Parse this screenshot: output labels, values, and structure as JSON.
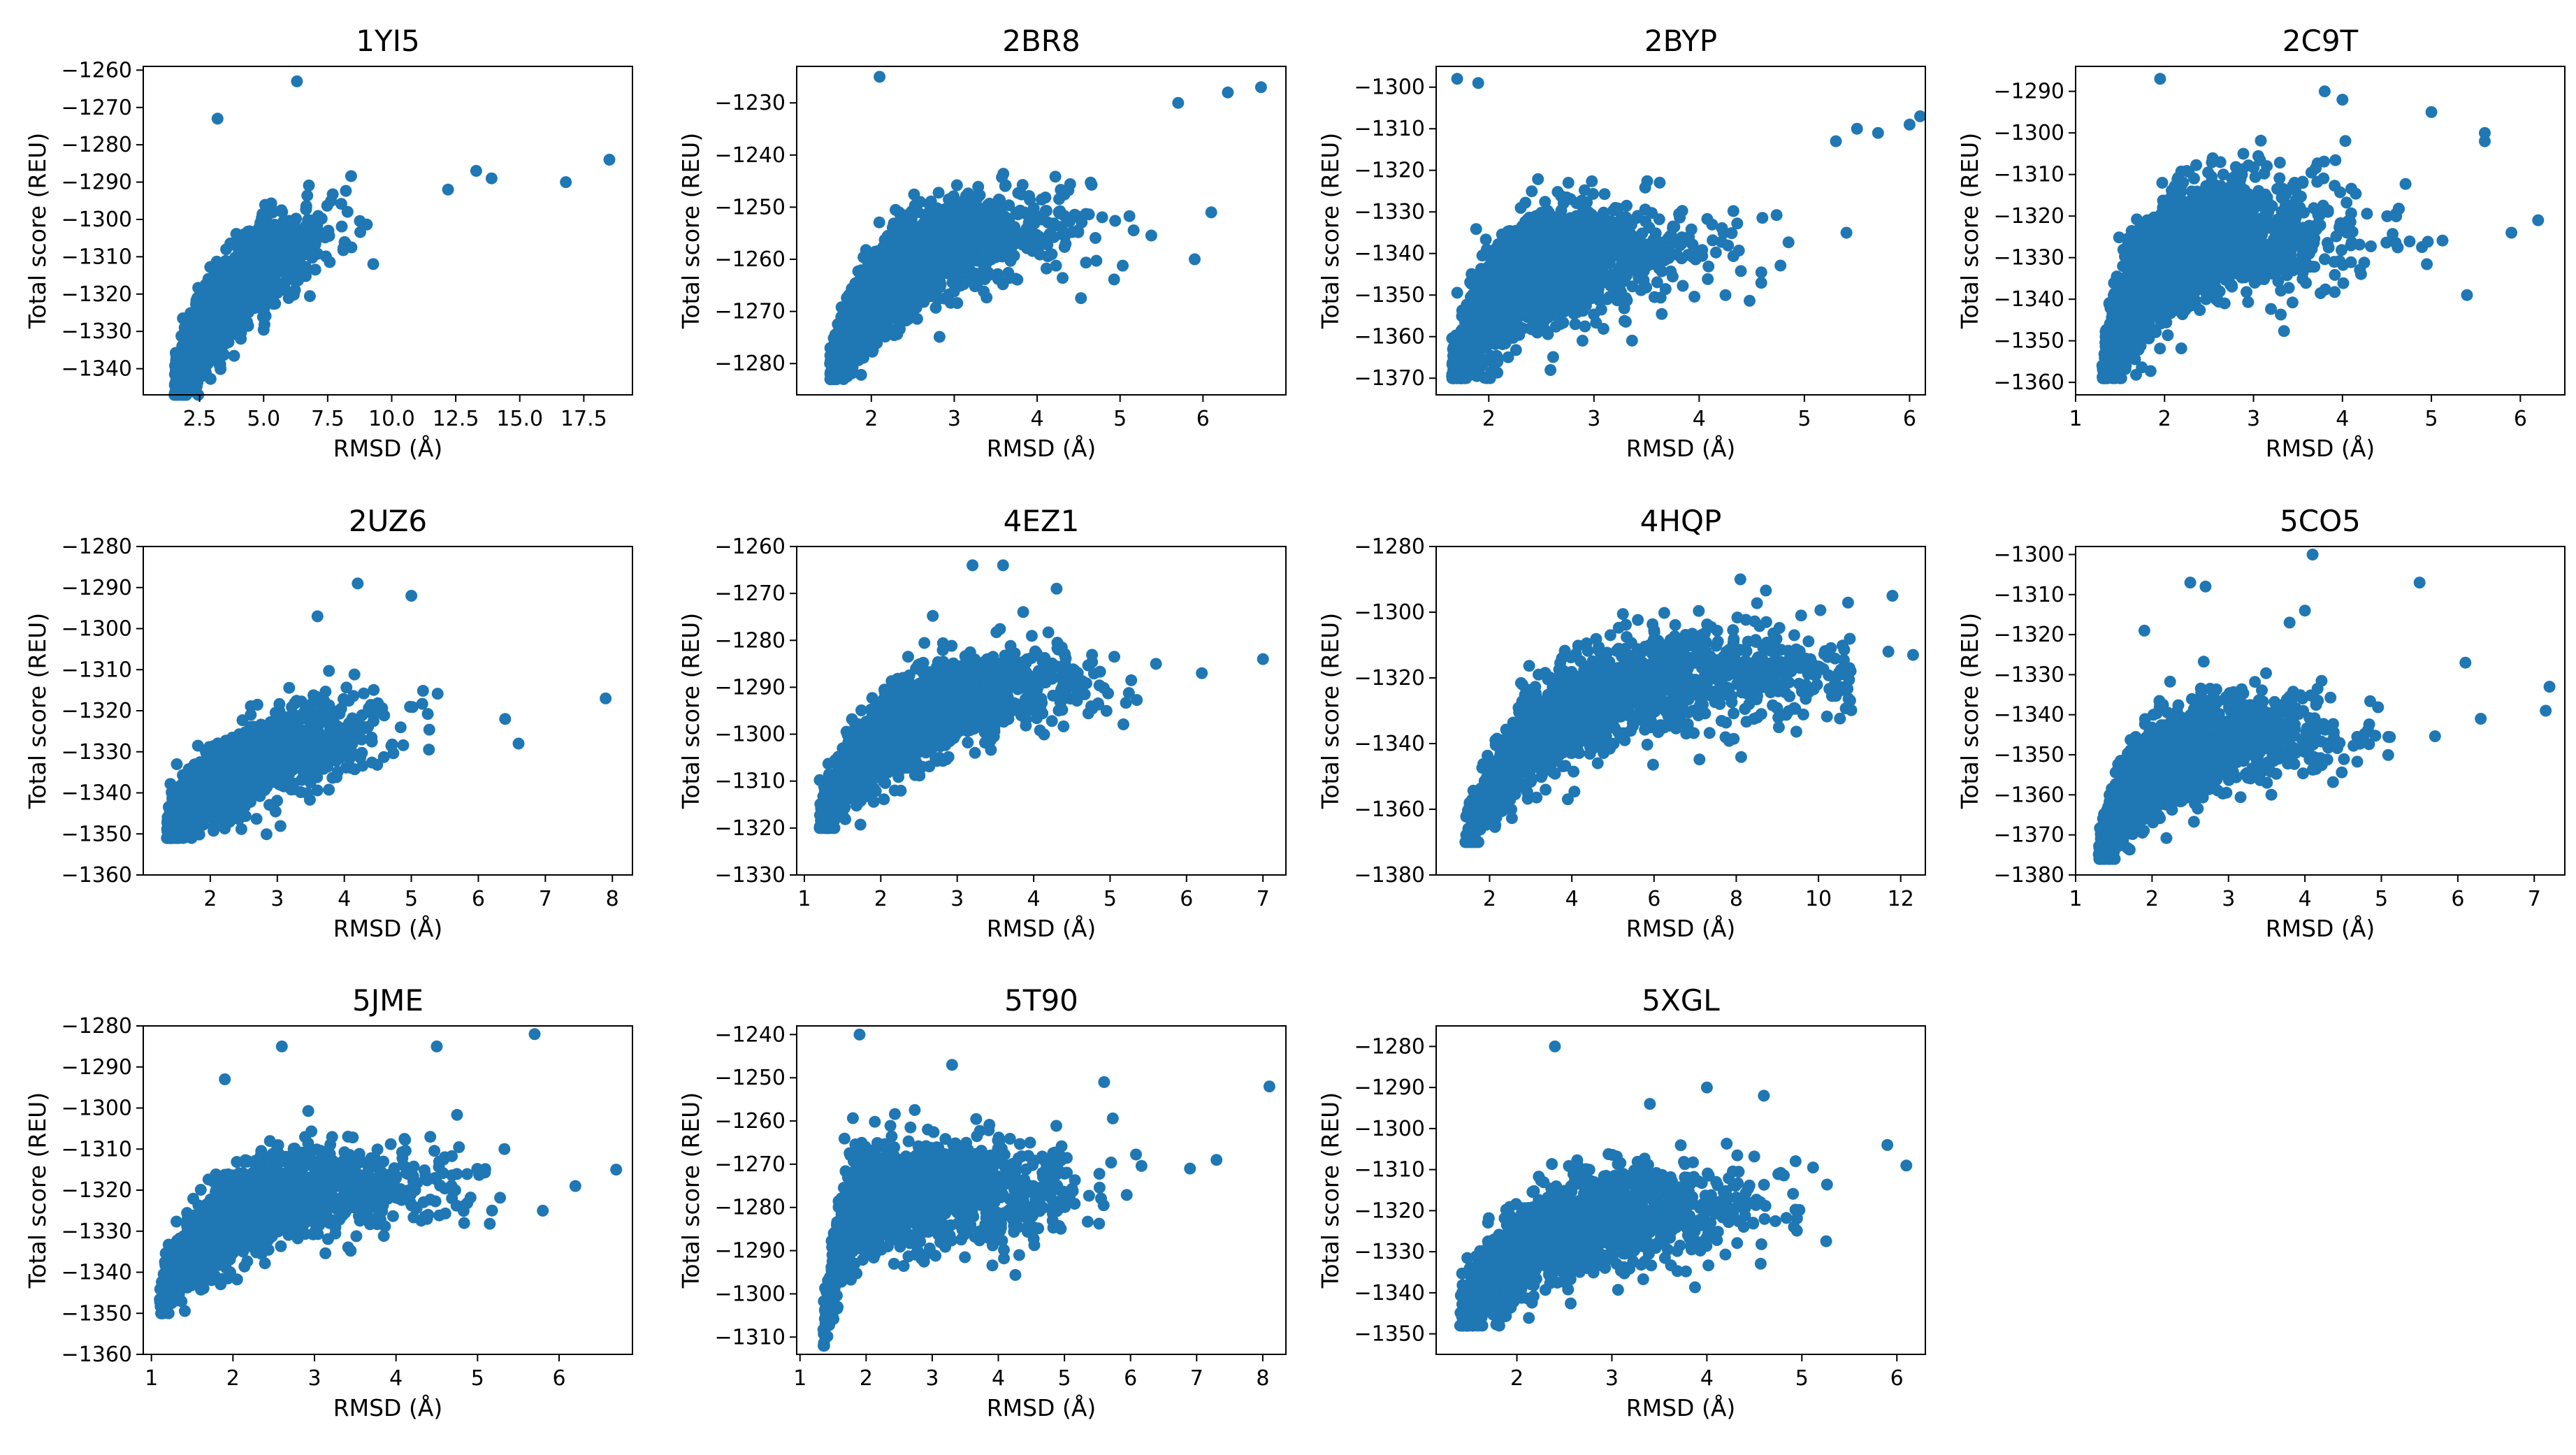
{
  "colors": {
    "marker": "#1f77b4",
    "axis": "#000000",
    "background": "#ffffff"
  },
  "chart_data": [
    {
      "id": "1YI5",
      "type": "scatter",
      "title": "1YI5",
      "xlabel": "RMSD (Å)",
      "ylabel": "Total score (REU)",
      "xlim": [
        0.3,
        19.4
      ],
      "ylim": [
        -1347,
        -1259
      ],
      "xticks": [
        2.5,
        5.0,
        7.5,
        10.0,
        12.5,
        15.0,
        17.5
      ],
      "xtick_labels": [
        "2.5",
        "5.0",
        "7.5",
        "10.0",
        "12.5",
        "15.0",
        "17.5"
      ],
      "yticks": [
        -1340,
        -1330,
        -1320,
        -1310,
        -1300,
        -1290,
        -1280,
        -1270,
        -1260
      ],
      "ytick_labels": [
        "−1340",
        "−1330",
        "−1320",
        "−1310",
        "−1300",
        "−1290",
        "−1280",
        "−1270",
        "−1260"
      ],
      "n_points": 1400,
      "x_start": 1.5,
      "x_spread": 2.5,
      "x_max": 11.5,
      "bottom_y": -1345,
      "plateau_y": -1296,
      "rise_width": 3.2,
      "y_noise": 6.5,
      "outliers": [
        [
          12.2,
          -1292
        ],
        [
          13.3,
          -1287
        ],
        [
          13.9,
          -1289
        ],
        [
          16.8,
          -1290
        ],
        [
          18.5,
          -1284
        ],
        [
          6.3,
          -1263
        ],
        [
          3.2,
          -1273
        ]
      ]
    },
    {
      "id": "2BR8",
      "type": "scatter",
      "title": "2BR8",
      "xlabel": "RMSD (Å)",
      "ylabel": "Total score (REU)",
      "xlim": [
        1.1,
        7.0
      ],
      "ylim": [
        -1286,
        -1223
      ],
      "xticks": [
        2,
        3,
        4,
        5,
        6
      ],
      "xtick_labels": [
        "2",
        "3",
        "4",
        "5",
        "6"
      ],
      "yticks": [
        -1280,
        -1270,
        -1260,
        -1250,
        -1240,
        -1230
      ],
      "ytick_labels": [
        "−1280",
        "−1270",
        "−1260",
        "−1250",
        "−1240",
        "−1230"
      ],
      "n_points": 1700,
      "x_start": 1.5,
      "x_spread": 1.2,
      "x_max": 5.6,
      "bottom_y": -1281,
      "plateau_y": -1253,
      "rise_width": 0.8,
      "y_noise": 4.5,
      "outliers": [
        [
          2.1,
          -1225
        ],
        [
          5.7,
          -1230
        ],
        [
          6.3,
          -1228
        ],
        [
          6.7,
          -1227
        ],
        [
          6.1,
          -1251
        ],
        [
          5.9,
          -1260
        ]
      ]
    },
    {
      "id": "2BYP",
      "type": "scatter",
      "title": "2BYP",
      "xlabel": "RMSD (Å)",
      "ylabel": "Total score (REU)",
      "xlim": [
        1.5,
        6.15
      ],
      "ylim": [
        -1374,
        -1295
      ],
      "xticks": [
        2,
        3,
        4,
        5,
        6
      ],
      "xtick_labels": [
        "2",
        "3",
        "4",
        "5",
        "6"
      ],
      "yticks": [
        -1370,
        -1360,
        -1350,
        -1340,
        -1330,
        -1320,
        -1310,
        -1300
      ],
      "ytick_labels": [
        "−1370",
        "−1360",
        "−1350",
        "−1340",
        "−1330",
        "−1320",
        "−1310",
        "−1300"
      ],
      "n_points": 1700,
      "x_start": 1.65,
      "x_spread": 1.0,
      "x_max": 5.2,
      "bottom_y": -1368,
      "plateau_y": -1338,
      "rise_width": 0.5,
      "y_noise": 7,
      "outliers": [
        [
          1.7,
          -1298
        ],
        [
          1.9,
          -1299
        ],
        [
          5.5,
          -1310
        ],
        [
          5.7,
          -1311
        ],
        [
          6.0,
          -1309
        ],
        [
          6.1,
          -1307
        ],
        [
          5.3,
          -1313
        ],
        [
          5.4,
          -1335
        ]
      ]
    },
    {
      "id": "2C9T",
      "type": "scatter",
      "title": "2C9T",
      "xlabel": "RMSD (Å)",
      "ylabel": "Total score (REU)",
      "xlim": [
        1.0,
        6.5
      ],
      "ylim": [
        -1363,
        -1284
      ],
      "xticks": [
        1,
        2,
        3,
        4,
        5,
        6
      ],
      "xtick_labels": [
        "1",
        "2",
        "3",
        "4",
        "5",
        "6"
      ],
      "yticks": [
        -1360,
        -1350,
        -1340,
        -1330,
        -1320,
        -1310,
        -1300,
        -1290
      ],
      "ytick_labels": [
        "−1360",
        "−1350",
        "−1340",
        "−1330",
        "−1320",
        "−1310",
        "−1300",
        "−1290"
      ],
      "n_points": 1700,
      "x_start": 1.3,
      "x_spread": 1.2,
      "x_max": 5.2,
      "bottom_y": -1357,
      "plateau_y": -1323,
      "rise_width": 0.45,
      "y_noise": 7.5,
      "outliers": [
        [
          1.95,
          -1287
        ],
        [
          3.8,
          -1290
        ],
        [
          4.0,
          -1292
        ],
        [
          5.6,
          -1300
        ],
        [
          5.6,
          -1302
        ],
        [
          5.0,
          -1295
        ],
        [
          6.2,
          -1321
        ],
        [
          5.9,
          -1324
        ],
        [
          5.4,
          -1339
        ]
      ]
    },
    {
      "id": "2UZ6",
      "type": "scatter",
      "title": "2UZ6",
      "xlabel": "RMSD (Å)",
      "ylabel": "Total score (REU)",
      "xlim": [
        1.0,
        8.3
      ],
      "ylim": [
        -1360,
        -1280
      ],
      "xticks": [
        2,
        3,
        4,
        5,
        6,
        7,
        8
      ],
      "xtick_labels": [
        "2",
        "3",
        "4",
        "5",
        "6",
        "7",
        "8"
      ],
      "yticks": [
        -1360,
        -1350,
        -1340,
        -1330,
        -1320,
        -1310,
        -1300,
        -1290,
        -1280
      ],
      "ytick_labels": [
        "−1360",
        "−1350",
        "−1340",
        "−1330",
        "−1320",
        "−1310",
        "−1300",
        "−1290",
        "−1280"
      ],
      "n_points": 1500,
      "x_start": 1.35,
      "x_spread": 1.3,
      "x_max": 6.0,
      "bottom_y": -1349,
      "plateau_y": -1322,
      "rise_width": 1.4,
      "y_noise": 5.5,
      "outliers": [
        [
          4.2,
          -1289
        ],
        [
          5.0,
          -1292
        ],
        [
          7.9,
          -1317
        ],
        [
          6.6,
          -1328
        ],
        [
          6.4,
          -1322
        ],
        [
          3.6,
          -1297
        ]
      ]
    },
    {
      "id": "4EZ1",
      "type": "scatter",
      "title": "4EZ1",
      "xlabel": "RMSD (Å)",
      "ylabel": "Total score (REU)",
      "xlim": [
        0.9,
        7.3
      ],
      "ylim": [
        -1330,
        -1260
      ],
      "xticks": [
        1,
        2,
        3,
        4,
        5,
        6,
        7
      ],
      "xtick_labels": [
        "1",
        "2",
        "3",
        "4",
        "5",
        "6",
        "7"
      ],
      "yticks": [
        -1330,
        -1320,
        -1310,
        -1300,
        -1290,
        -1280,
        -1270,
        -1260
      ],
      "ytick_labels": [
        "−1330",
        "−1320",
        "−1310",
        "−1300",
        "−1290",
        "−1280",
        "−1270",
        "−1260"
      ],
      "n_points": 1600,
      "x_start": 1.2,
      "x_spread": 1.5,
      "x_max": 5.4,
      "bottom_y": -1318,
      "plateau_y": -1287,
      "rise_width": 1.1,
      "y_noise": 5,
      "outliers": [
        [
          3.2,
          -1264
        ],
        [
          3.6,
          -1264
        ],
        [
          7.0,
          -1284
        ],
        [
          6.2,
          -1287
        ],
        [
          5.6,
          -1285
        ],
        [
          4.3,
          -1269
        ]
      ]
    },
    {
      "id": "4HQP",
      "type": "scatter",
      "title": "4HQP",
      "xlabel": "RMSD (Å)",
      "ylabel": "Total score (REU)",
      "xlim": [
        0.7,
        12.6
      ],
      "ylim": [
        -1380,
        -1280
      ],
      "xticks": [
        2,
        4,
        6,
        8,
        10,
        12
      ],
      "xtick_labels": [
        "2",
        "4",
        "6",
        "8",
        "10",
        "12"
      ],
      "yticks": [
        -1380,
        -1360,
        -1340,
        -1320,
        -1300,
        -1280
      ],
      "ytick_labels": [
        "−1380",
        "−1360",
        "−1340",
        "−1320",
        "−1300",
        "−1280"
      ],
      "n_points": 1500,
      "x_start": 1.4,
      "x_spread": 4.5,
      "x_max": 10.8,
      "bottom_y": -1368,
      "plateau_y": -1318,
      "rise_width": 1.8,
      "y_noise": 8,
      "outliers": [
        [
          11.8,
          -1295
        ],
        [
          12.3,
          -1313
        ],
        [
          11.7,
          -1312
        ],
        [
          8.1,
          -1290
        ]
      ]
    },
    {
      "id": "5CO5",
      "type": "scatter",
      "title": "5CO5",
      "xlabel": "RMSD (Å)",
      "ylabel": "Total score (REU)",
      "xlim": [
        1.0,
        7.4
      ],
      "ylim": [
        -1380,
        -1298
      ],
      "xticks": [
        1,
        2,
        3,
        4,
        5,
        6,
        7
      ],
      "xtick_labels": [
        "1",
        "2",
        "3",
        "4",
        "5",
        "6",
        "7"
      ],
      "yticks": [
        -1380,
        -1370,
        -1360,
        -1350,
        -1340,
        -1330,
        -1320,
        -1310,
        -1300
      ],
      "ytick_labels": [
        "−1380",
        "−1370",
        "−1360",
        "−1350",
        "−1340",
        "−1330",
        "−1320",
        "−1310",
        "−1300"
      ],
      "n_points": 1700,
      "x_start": 1.3,
      "x_spread": 1.3,
      "x_max": 5.8,
      "bottom_y": -1374,
      "plateau_y": -1345,
      "rise_width": 0.6,
      "y_noise": 5.5,
      "outliers": [
        [
          4.1,
          -1300
        ],
        [
          5.5,
          -1307
        ],
        [
          2.5,
          -1307
        ],
        [
          2.7,
          -1308
        ],
        [
          7.2,
          -1333
        ],
        [
          7.15,
          -1339
        ],
        [
          6.3,
          -1341
        ],
        [
          6.1,
          -1327
        ],
        [
          4.0,
          -1314
        ],
        [
          3.8,
          -1317
        ],
        [
          1.9,
          -1319
        ]
      ]
    },
    {
      "id": "5JME",
      "type": "scatter",
      "title": "5JME",
      "xlabel": "RMSD (Å)",
      "ylabel": "Total score (REU)",
      "xlim": [
        0.9,
        6.9
      ],
      "ylim": [
        -1360,
        -1280
      ],
      "xticks": [
        1,
        2,
        3,
        4,
        5,
        6
      ],
      "xtick_labels": [
        "1",
        "2",
        "3",
        "4",
        "5",
        "6"
      ],
      "yticks": [
        -1360,
        -1350,
        -1340,
        -1330,
        -1320,
        -1310,
        -1300,
        -1290,
        -1280
      ],
      "ytick_labels": [
        "−1360",
        "−1350",
        "−1340",
        "−1330",
        "−1320",
        "−1310",
        "−1300",
        "−1290",
        "−1280"
      ],
      "n_points": 1600,
      "x_start": 1.1,
      "x_spread": 1.5,
      "x_max": 5.4,
      "bottom_y": -1348,
      "plateau_y": -1318,
      "rise_width": 0.7,
      "y_noise": 5.5,
      "outliers": [
        [
          2.6,
          -1285
        ],
        [
          4.5,
          -1285
        ],
        [
          5.7,
          -1282
        ],
        [
          6.7,
          -1315
        ],
        [
          6.2,
          -1319
        ],
        [
          5.8,
          -1325
        ],
        [
          1.9,
          -1293
        ]
      ]
    },
    {
      "id": "5T90",
      "type": "scatter",
      "title": "5T90",
      "xlabel": "RMSD (Å)",
      "ylabel": "Total score (REU)",
      "xlim": [
        0.95,
        8.35
      ],
      "ylim": [
        -1314,
        -1238
      ],
      "xticks": [
        1,
        2,
        3,
        4,
        5,
        6,
        7,
        8
      ],
      "xtick_labels": [
        "1",
        "2",
        "3",
        "4",
        "5",
        "6",
        "7",
        "8"
      ],
      "yticks": [
        -1310,
        -1300,
        -1290,
        -1280,
        -1270,
        -1260,
        -1250,
        -1240
      ],
      "ytick_labels": [
        "−1310",
        "−1300",
        "−1290",
        "−1280",
        "−1270",
        "−1260",
        "−1250",
        "−1240"
      ],
      "n_points": 1500,
      "x_start": 1.35,
      "x_spread": 1.7,
      "x_max": 6.2,
      "bottom_y": -1310,
      "plateau_y": -1276,
      "rise_width": 0.25,
      "y_noise": 6,
      "outliers": [
        [
          1.9,
          -1240
        ],
        [
          8.1,
          -1252
        ],
        [
          5.6,
          -1251
        ],
        [
          7.3,
          -1269
        ],
        [
          6.9,
          -1271
        ],
        [
          3.3,
          -1247
        ]
      ]
    },
    {
      "id": "5XGL",
      "type": "scatter",
      "title": "5XGL",
      "xlabel": "RMSD (Å)",
      "ylabel": "Total score (REU)",
      "xlim": [
        1.15,
        6.3
      ],
      "ylim": [
        -1355,
        -1275
      ],
      "xticks": [
        2,
        3,
        4,
        5,
        6
      ],
      "xtick_labels": [
        "2",
        "3",
        "4",
        "5",
        "6"
      ],
      "yticks": [
        -1350,
        -1340,
        -1330,
        -1320,
        -1310,
        -1300,
        -1290,
        -1280
      ],
      "ytick_labels": [
        "−1350",
        "−1340",
        "−1330",
        "−1320",
        "−1310",
        "−1300",
        "−1290",
        "−1280"
      ],
      "n_points": 1600,
      "x_start": 1.4,
      "x_spread": 1.4,
      "x_max": 5.3,
      "bottom_y": -1346,
      "plateau_y": -1318,
      "rise_width": 0.8,
      "y_noise": 6,
      "outliers": [
        [
          2.4,
          -1280
        ],
        [
          4.0,
          -1290
        ],
        [
          4.6,
          -1292
        ],
        [
          6.1,
          -1309
        ],
        [
          5.9,
          -1304
        ],
        [
          3.4,
          -1294
        ]
      ]
    }
  ]
}
